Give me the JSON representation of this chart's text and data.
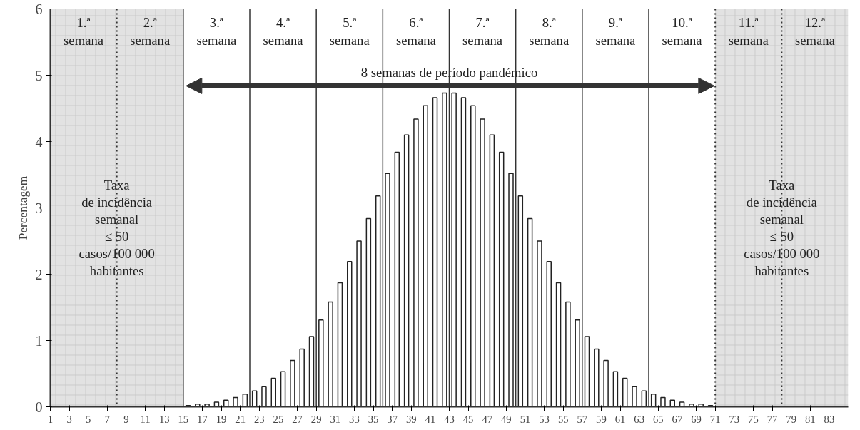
{
  "chart_data": {
    "type": "bar",
    "ylabel": "Percentagem",
    "x": [
      15.5,
      16.5,
      17.5,
      18.5,
      19.5,
      20.5,
      21.5,
      22.5,
      23.5,
      24.5,
      25.5,
      26.5,
      27.5,
      28.5,
      29.5,
      30.5,
      31.5,
      32.5,
      33.5,
      34.5,
      35.5,
      36.5,
      37.5,
      38.5,
      39.5,
      40.5,
      41.5,
      42.5,
      43.5,
      44.5,
      45.5,
      46.5,
      47.5,
      48.5,
      49.5,
      50.5,
      51.5,
      52.5,
      53.5,
      54.5,
      55.5,
      56.5,
      57.5,
      58.5,
      59.5,
      60.5,
      61.5,
      62.5,
      63.5,
      64.5,
      65.5,
      66.5,
      67.5,
      68.5,
      69.5,
      70.5
    ],
    "values": [
      0.02,
      0.04,
      0.04,
      0.07,
      0.1,
      0.14,
      0.19,
      0.24,
      0.31,
      0.43,
      0.53,
      0.7,
      0.87,
      1.06,
      1.31,
      1.58,
      1.87,
      2.19,
      2.5,
      2.84,
      3.18,
      3.52,
      3.84,
      4.1,
      4.34,
      4.54,
      4.66,
      4.73,
      4.73,
      4.66,
      4.54,
      4.34,
      4.1,
      3.84,
      3.52,
      3.18,
      2.84,
      2.5,
      2.19,
      1.87,
      1.58,
      1.31,
      1.06,
      0.87,
      0.7,
      0.53,
      0.43,
      0.31,
      0.24,
      0.19,
      0.14,
      0.1,
      0.07,
      0.04,
      0.04,
      0.02
    ],
    "color": "#ffffff",
    "xlim": [
      1,
      85
    ],
    "xticks": [
      1,
      3,
      5,
      7,
      9,
      11,
      13,
      15,
      17,
      19,
      21,
      23,
      25,
      27,
      29,
      31,
      33,
      35,
      37,
      39,
      41,
      43,
      45,
      47,
      49,
      51,
      53,
      55,
      57,
      59,
      61,
      63,
      65,
      67,
      69,
      71,
      73,
      75,
      77,
      79,
      81,
      83
    ],
    "ylim": [
      0,
      6
    ],
    "yticks": [
      0,
      1,
      2,
      3,
      4,
      5,
      6
    ],
    "bands": [
      {
        "axis": "x",
        "from": 1,
        "to": 15,
        "label": "Taxa\nde incidência\nsemanal\n≤ 50\ncasos/100 000\nhabitantes",
        "color": "#e2e2e2"
      },
      {
        "axis": "x",
        "from": 71,
        "to": 85,
        "label": "Taxa\nde incidência\nsemanal\n≤ 50\ncasos/100 000\nhabitantes",
        "color": "#e2e2e2"
      }
    ],
    "ref_lines": [
      {
        "axis": "x",
        "value": 8,
        "line_style": "dotted",
        "color": "#333333"
      },
      {
        "axis": "x",
        "value": 15,
        "line_style": "solid",
        "color": "#333333"
      },
      {
        "axis": "x",
        "value": 22,
        "line_style": "solid",
        "color": "#333333"
      },
      {
        "axis": "x",
        "value": 29,
        "line_style": "solid",
        "color": "#333333"
      },
      {
        "axis": "x",
        "value": 36,
        "line_style": "solid",
        "color": "#333333"
      },
      {
        "axis": "x",
        "value": 43,
        "line_style": "solid",
        "color": "#333333"
      },
      {
        "axis": "x",
        "value": 50,
        "line_style": "solid",
        "color": "#333333"
      },
      {
        "axis": "x",
        "value": 57,
        "line_style": "solid",
        "color": "#333333"
      },
      {
        "axis": "x",
        "value": 64,
        "line_style": "solid",
        "color": "#333333"
      },
      {
        "axis": "x",
        "value": 71,
        "line_style": "dotted",
        "color": "#333333"
      },
      {
        "axis": "x",
        "value": 78,
        "line_style": "dotted",
        "color": "#333333"
      }
    ],
    "annotations": [
      "1.ª\nsemana",
      "2.ª\nsemana",
      "3.ª\nsemana",
      "4.ª\nsemana",
      "5.ª\nsemana",
      "6.ª\nsemana",
      "7.ª\nsemana",
      "8.ª\nsemana",
      "9.ª\nsemana",
      "10.ª\nsemana",
      "11.ª\nsemana",
      "12.ª\nsemana",
      {
        "text": "8 semanas de período pandémico",
        "x": 43,
        "y": 4.84
      }
    ],
    "grid": false
  }
}
